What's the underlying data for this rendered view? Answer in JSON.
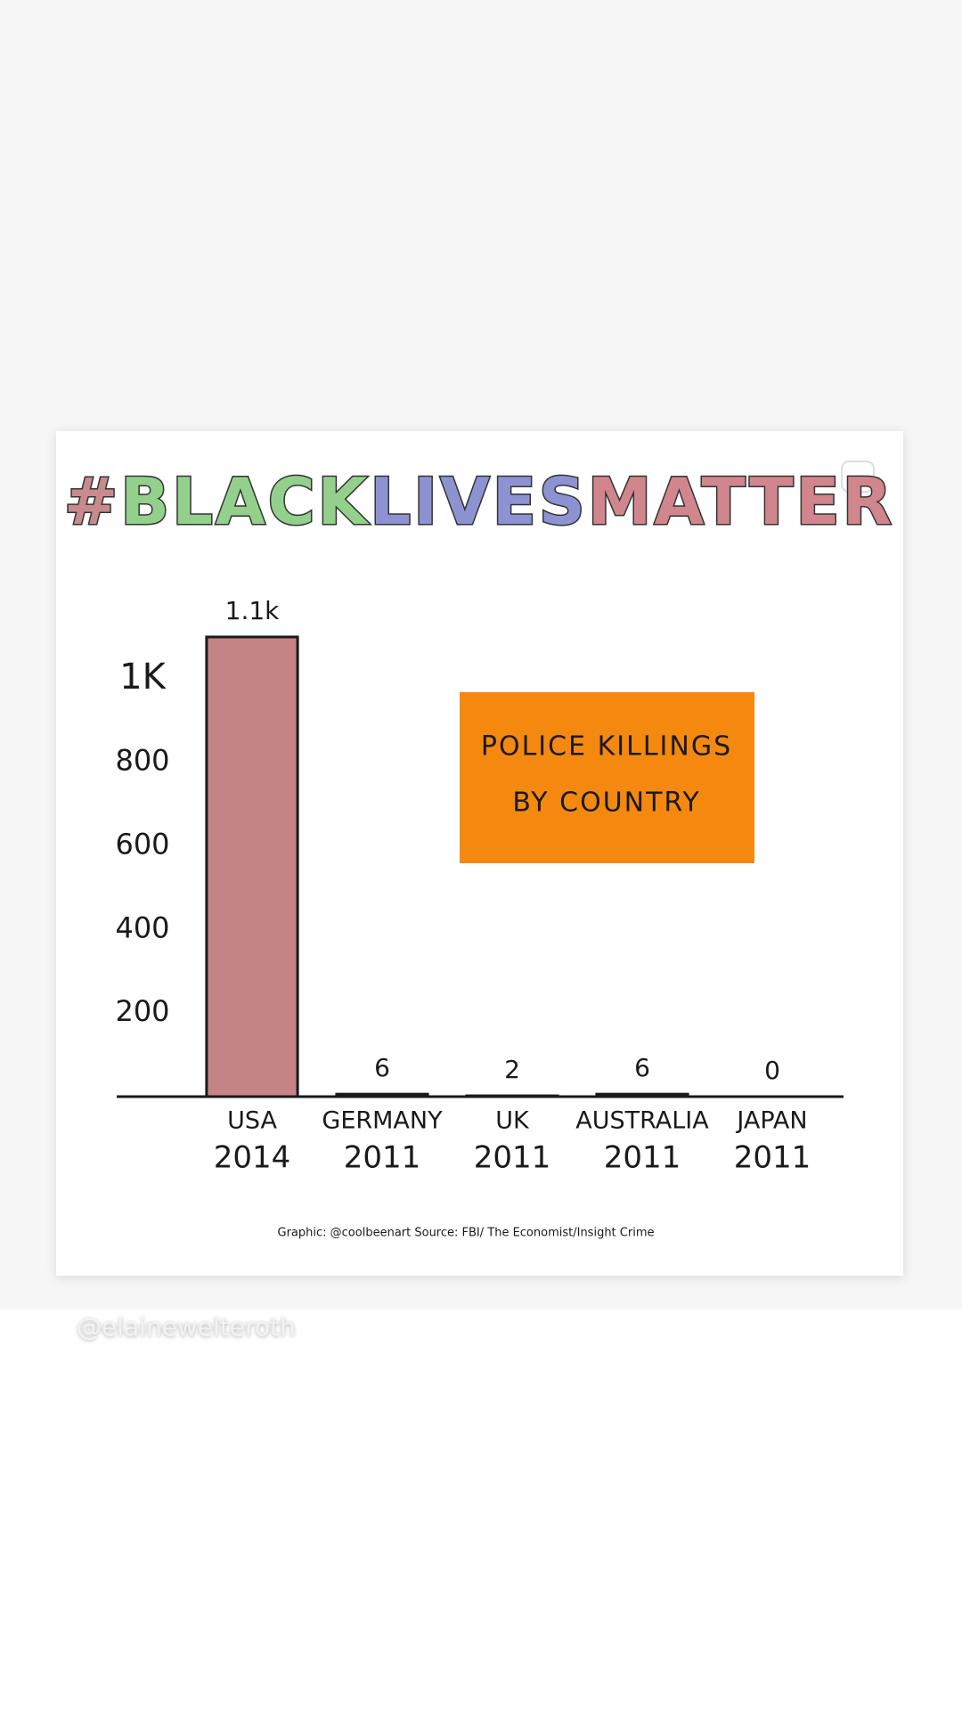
{
  "chart_data": {
    "type": "bar",
    "title_parts": [
      {
        "text": "#",
        "color": "#c98a8e"
      },
      {
        "text": "BLACK",
        "color": "#93d08c"
      },
      {
        "text": "LIVES",
        "color": "#8d93d2"
      },
      {
        "text": "MATTER",
        "color": "#d0868c"
      }
    ],
    "annotation": [
      "POLICE KILLINGS",
      "BY COUNTRY"
    ],
    "annotation_color": "#f5890f",
    "categories": [
      "USA",
      "GERMANY",
      "UK",
      "AUSTRALIA",
      "JAPAN"
    ],
    "years": [
      "2014",
      "2011",
      "2011",
      "2011",
      "2011"
    ],
    "values": [
      1100,
      6,
      2,
      6,
      0
    ],
    "value_labels": [
      "1.1k",
      "6",
      "2",
      "6",
      "0"
    ],
    "color": "#c48385",
    "ylim": [
      0,
      1100
    ],
    "yticks": [
      200,
      400,
      600,
      800,
      {
        "value": 1000,
        "label": "1K"
      }
    ],
    "source": "Graphic: @coolbeenart  Source: FBI/ The Economist/Insight Crime"
  },
  "handle": "@elainewelteroth"
}
